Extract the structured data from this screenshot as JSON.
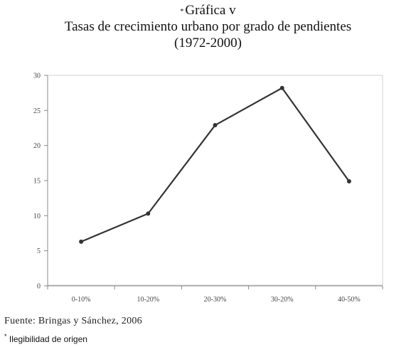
{
  "title": {
    "marker": "*",
    "line1": "Gráfica v",
    "line2": "Tasas de crecimiento urbano por grado de pendientes",
    "line3": "(1972-2000)"
  },
  "source": "Fuente: Bringas y Sánchez, 2006",
  "note": {
    "marker": "*",
    "text": "Ilegibilidad de origen"
  },
  "chart_data": {
    "type": "line",
    "categories": [
      "0-10%",
      "10-20%",
      "20-30%",
      "30-20%",
      "40-50%"
    ],
    "series": [
      {
        "values": [
          6.3,
          10.3,
          22.9,
          28.2,
          14.9
        ]
      }
    ],
    "yticks": [
      0,
      5,
      10,
      15,
      20,
      25,
      30
    ],
    "ylim": [
      0,
      30
    ],
    "grid": false,
    "legend": "none",
    "xlabel": "",
    "ylabel": "",
    "colors": {
      "line": "#333333",
      "marker": "#333333",
      "axis": "#888888",
      "frame": "#c8c8c8"
    }
  }
}
